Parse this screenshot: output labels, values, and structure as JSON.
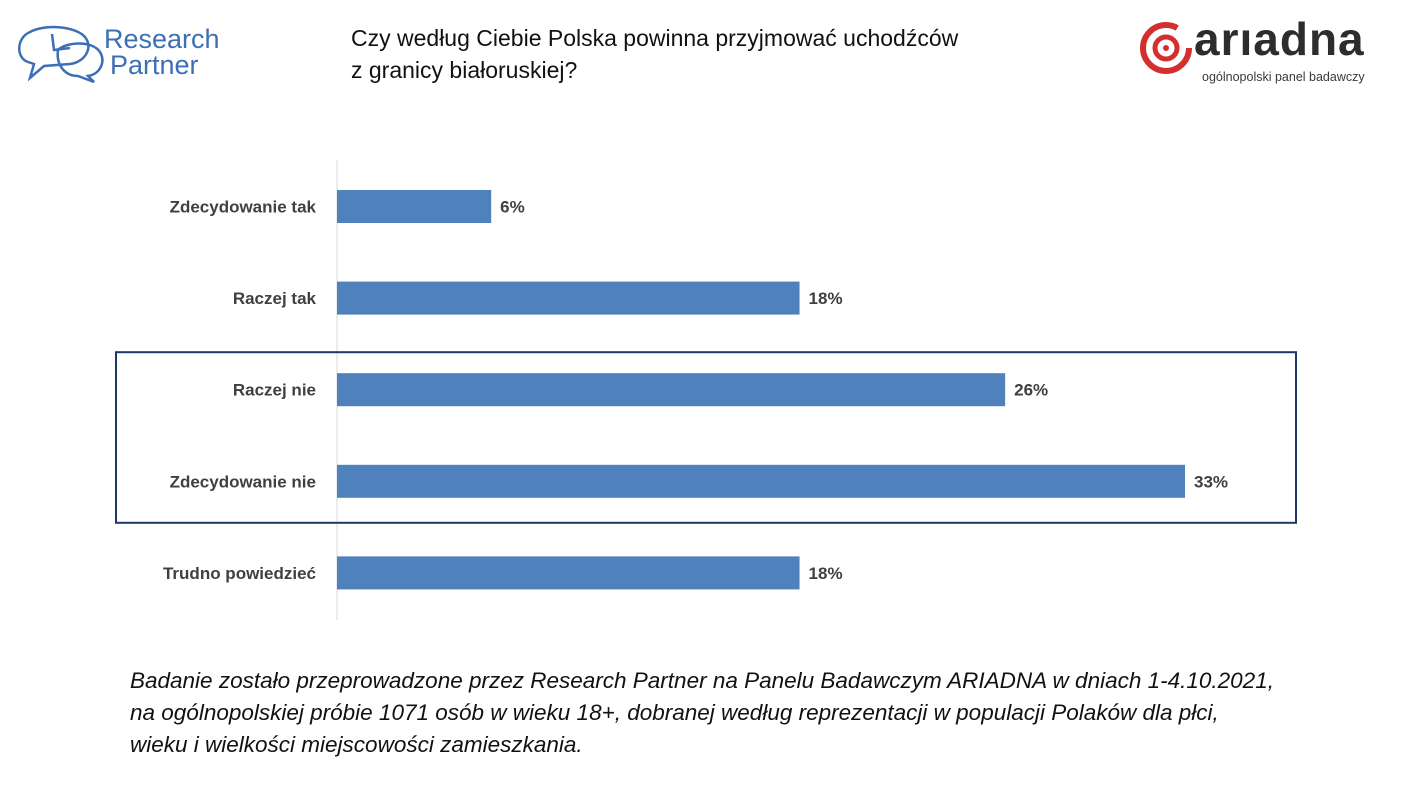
{
  "header": {
    "rp_logo": {
      "line1": "Research",
      "line2": "Partner"
    },
    "title": {
      "line1": "Czy według Ciebie Polska powinna przyjmować uchodźców",
      "line2": "z granicy białoruskiej?"
    },
    "ariadna_logo": {
      "word": "arıadna",
      "subtitle": "ogólnopolski panel badawczy"
    }
  },
  "colors": {
    "bar": "#4f81bd",
    "highlight_box": "#1f3864",
    "brand_blue": "#3c6fb5",
    "brand_red": "#d32f2f"
  },
  "chart_data": {
    "type": "bar",
    "orientation": "horizontal",
    "categories": [
      "Zdecydowanie tak",
      "Raczej tak",
      "Raczej nie",
      "Zdecydowanie nie",
      "Trudno powiedzieć"
    ],
    "values": [
      6,
      18,
      26,
      33,
      18
    ],
    "value_labels": [
      "6%",
      "18%",
      "26%",
      "33%",
      "18%"
    ],
    "unit": "%",
    "xlim": [
      0,
      33
    ],
    "grid": false,
    "legend": "none",
    "highlighted_categories": [
      "Raczej nie",
      "Zdecydowanie nie"
    ]
  },
  "footnote": {
    "line1": "Badanie zostało przeprowadzone przez Research Partner na Panelu Badawczym ARIADNA w dniach 1-4.10.2021,",
    "line2": "na ogólnopolskiej próbie 1071 osób w wieku 18+, dobranej według reprezentacji w populacji Polaków dla płci,",
    "line3": "wieku i wielkości miejscowości zamieszkania."
  }
}
